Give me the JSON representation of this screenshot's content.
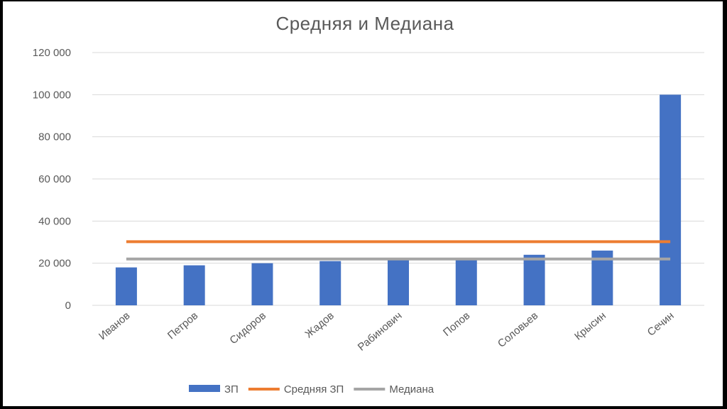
{
  "chart_data": {
    "type": "bar",
    "title": "Средняя и Медиана",
    "categories": [
      "Иванов",
      "Петров",
      "Сидоров",
      "Жадов",
      "Рабинович",
      "Попов",
      "Соловьев",
      "Крысин",
      "Сечин"
    ],
    "series": [
      {
        "name": "ЗП",
        "type": "bar",
        "color": "#4472C4",
        "values": [
          18000,
          19000,
          20000,
          21000,
          22000,
          22000,
          24000,
          26000,
          100000
        ]
      },
      {
        "name": "Средняя ЗП",
        "type": "line",
        "color": "#ED7D31",
        "values": [
          30222,
          30222,
          30222,
          30222,
          30222,
          30222,
          30222,
          30222,
          30222
        ]
      },
      {
        "name": "Медиана",
        "type": "line",
        "color": "#A5A5A5",
        "values": [
          22000,
          22000,
          22000,
          22000,
          22000,
          22000,
          22000,
          22000,
          22000
        ]
      }
    ],
    "y_ticks": [
      "0",
      "20 000",
      "40 000",
      "60 000",
      "80 000",
      "100 000",
      "120 000"
    ],
    "ylim": [
      0,
      120000
    ],
    "grid": true,
    "legend_position": "bottom"
  }
}
